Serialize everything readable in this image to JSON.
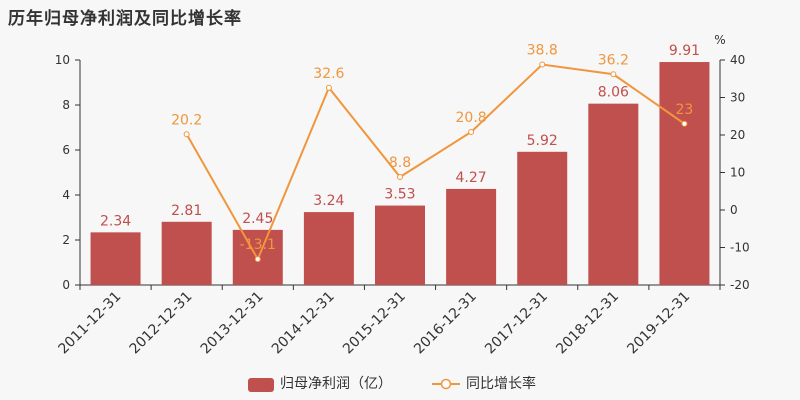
{
  "title": "历年归母净利润及同比增长率",
  "colors": {
    "bar": "#c0504d",
    "line": "#f0963c",
    "axis": "#333333"
  },
  "chart_data": {
    "type": "bar",
    "categories": [
      "2011-12-31",
      "2012-12-31",
      "2013-12-31",
      "2014-12-31",
      "2015-12-31",
      "2016-12-31",
      "2017-12-31",
      "2018-12-31",
      "2019-12-31"
    ],
    "series": [
      {
        "name": "归母净利润（亿）",
        "type": "bar",
        "axis": "left",
        "values": [
          2.34,
          2.81,
          2.45,
          3.24,
          3.53,
          4.27,
          5.92,
          8.06,
          9.91
        ],
        "labels": [
          "2.34",
          "2.81",
          "2.45",
          "3.24",
          "3.53",
          "4.27",
          "5.92",
          "8.06",
          "9.91"
        ]
      },
      {
        "name": "同比增长率",
        "type": "line",
        "axis": "right",
        "values": [
          null,
          20.2,
          -13.1,
          32.6,
          8.8,
          20.8,
          38.8,
          36.2,
          23
        ],
        "labels": [
          "",
          "20.2",
          "-13.1",
          "32.6",
          "8.8",
          "20.8",
          "38.8",
          "36.2",
          "23"
        ]
      }
    ],
    "y_left": {
      "min": 0,
      "max": 10,
      "ticks": [
        "0",
        "2",
        "4",
        "6",
        "8",
        "10"
      ]
    },
    "y_right": {
      "min": -20,
      "max": 40,
      "unit": "%",
      "ticks": [
        "-20",
        "-10",
        "0",
        "10",
        "20",
        "30",
        "40"
      ]
    },
    "legend_position": "bottom-center",
    "grid": false
  }
}
